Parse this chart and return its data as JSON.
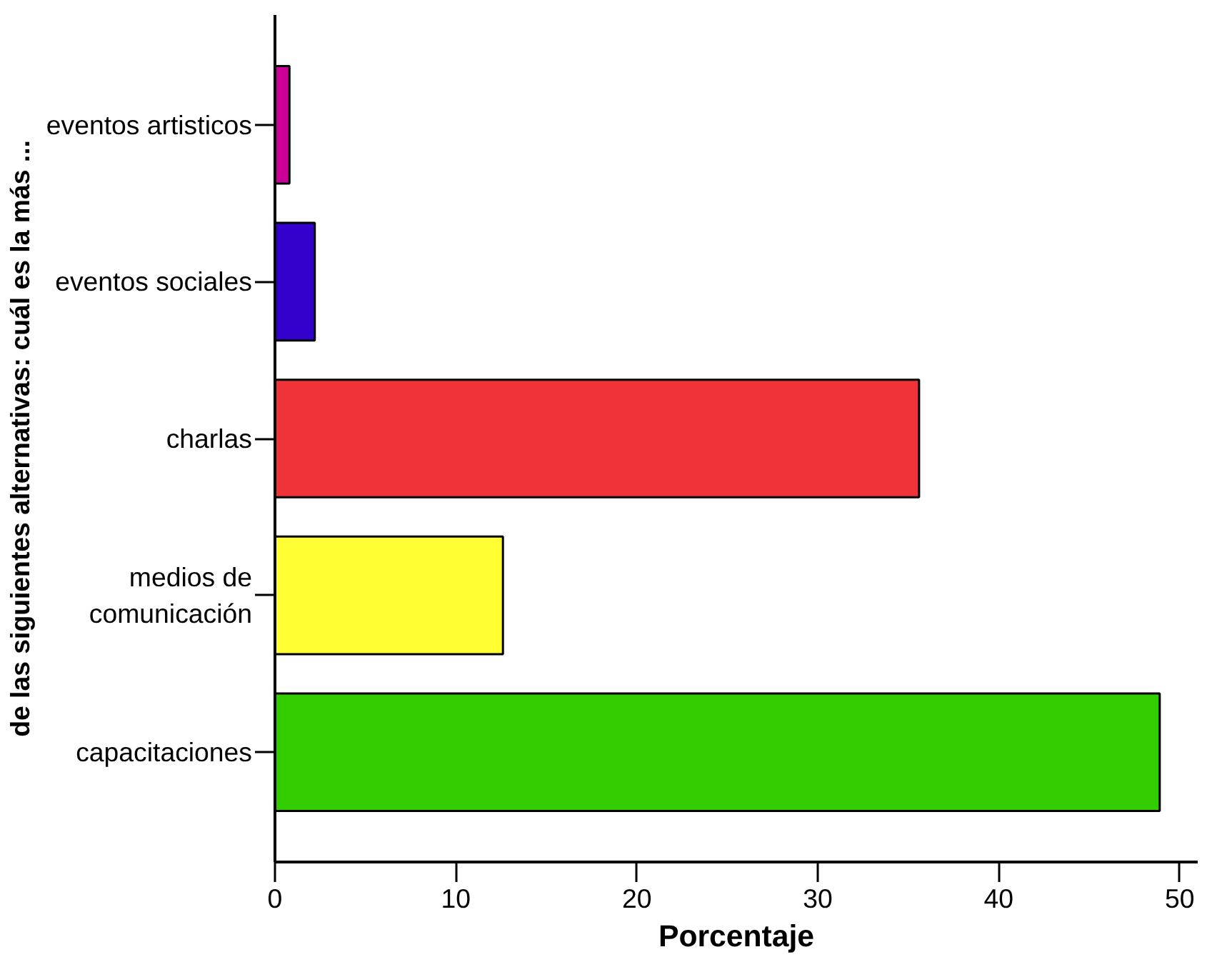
{
  "chart_data": {
    "type": "bar",
    "orientation": "horizontal",
    "xlabel": "Porcentaje",
    "ylabel": "de las siguientes alternativas: cuál es la más ...",
    "categories": [
      "eventos artisticos",
      "eventos sociales",
      "charlas",
      "medios de\ncomunicación",
      "capacitaciones"
    ],
    "values": [
      0.8,
      2.2,
      35.6,
      12.6,
      48.9
    ],
    "colors": [
      "#cc0099",
      "#3300cc",
      "#ef3339",
      "#ffff33",
      "#33cc00"
    ],
    "xlim": [
      0,
      51
    ],
    "xticks": [
      0,
      10,
      20,
      30,
      40,
      50
    ],
    "grid": false
  }
}
